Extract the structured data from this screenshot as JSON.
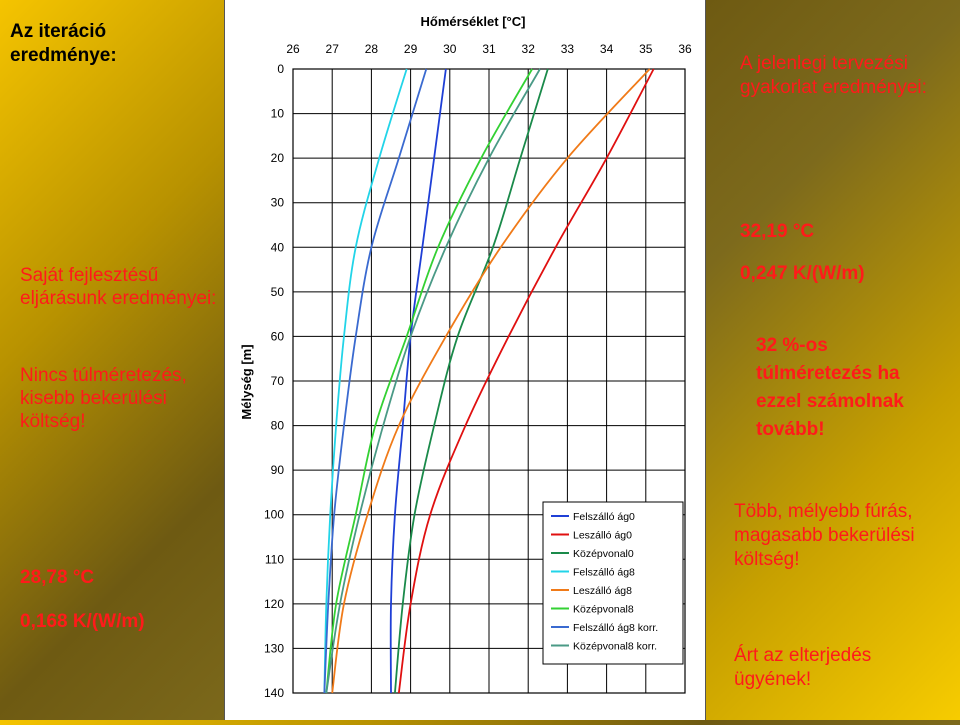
{
  "left_panel": {
    "heading": "Az iteráció eredménye:",
    "own_method_label": "Saját fejlesztésű eljárásunk eredményei:",
    "own_method_note": "Nincs túlméretezés, kisebb bekerülési költség!",
    "own_temp": "28,78 °C",
    "own_resistance": "0,168 K/(W/m)"
  },
  "right_panel": {
    "current_practice_label": "A jelenlegi tervezési gyakorlat eredményei:",
    "current_temp": "32,19 °C",
    "current_resistance": "0,247 K/(W/m)",
    "oversize_note": "32 %-os túlméretezés ha ezzel számolnak tovább!",
    "cost_note": "Több, mélyebb fúrás, magasabb bekerülési költség!",
    "harm_note": "Árt az elterjedés ügyének!"
  },
  "chart_data": {
    "type": "line",
    "title": "Hőmérséklet [°C]",
    "xlabel": "Hőmérséklet [°C]",
    "ylabel": "Mélység [m]",
    "xlim": [
      26,
      36
    ],
    "ylim": [
      0,
      140
    ],
    "y_inverted": true,
    "x_axis_position": "top",
    "x_ticks": [
      26,
      27,
      28,
      29,
      30,
      31,
      32,
      33,
      34,
      35,
      36
    ],
    "y_ticks": [
      0,
      10,
      20,
      30,
      40,
      50,
      60,
      70,
      80,
      90,
      100,
      110,
      120,
      130,
      140
    ],
    "grid": true,
    "legend_position": "bottom-right",
    "series": [
      {
        "name": "Felszálló ág0",
        "color": "#1f3fd6",
        "points": [
          [
            29.9,
            0
          ],
          [
            29.6,
            20
          ],
          [
            29.3,
            40
          ],
          [
            29.0,
            60
          ],
          [
            28.8,
            80
          ],
          [
            28.6,
            100
          ],
          [
            28.5,
            120
          ],
          [
            28.5,
            140
          ]
        ]
      },
      {
        "name": "Leszálló ág0",
        "color": "#e01010",
        "points": [
          [
            35.2,
            0
          ],
          [
            34.0,
            20
          ],
          [
            32.7,
            40
          ],
          [
            31.5,
            60
          ],
          [
            30.4,
            80
          ],
          [
            29.5,
            100
          ],
          [
            29.0,
            120
          ],
          [
            28.7,
            140
          ]
        ]
      },
      {
        "name": "Középvonal0",
        "color": "#1a8a4a",
        "points": [
          [
            32.5,
            0
          ],
          [
            31.8,
            20
          ],
          [
            31.1,
            40
          ],
          [
            30.2,
            60
          ],
          [
            29.6,
            80
          ],
          [
            29.1,
            100
          ],
          [
            28.8,
            120
          ],
          [
            28.6,
            140
          ]
        ]
      },
      {
        "name": "Felszálló ág8",
        "color": "#22d4e8",
        "points": [
          [
            28.9,
            0
          ],
          [
            28.2,
            20
          ],
          [
            27.6,
            40
          ],
          [
            27.3,
            60
          ],
          [
            27.1,
            80
          ],
          [
            26.95,
            100
          ],
          [
            26.85,
            120
          ],
          [
            26.8,
            140
          ]
        ]
      },
      {
        "name": "Leszálló ág8",
        "color": "#f07a18",
        "points": [
          [
            35.1,
            0
          ],
          [
            33.0,
            20
          ],
          [
            31.3,
            40
          ],
          [
            29.9,
            60
          ],
          [
            28.7,
            80
          ],
          [
            27.9,
            100
          ],
          [
            27.3,
            120
          ],
          [
            27.0,
            140
          ]
        ]
      },
      {
        "name": "Középvonal8",
        "color": "#33d133",
        "points": [
          [
            32.1,
            0
          ],
          [
            30.8,
            20
          ],
          [
            29.7,
            40
          ],
          [
            28.9,
            60
          ],
          [
            28.1,
            80
          ],
          [
            27.6,
            100
          ],
          [
            27.1,
            120
          ],
          [
            26.85,
            140
          ]
        ]
      },
      {
        "name": "Felszálló ág8 korr.",
        "color": "#3a6ad0",
        "points": [
          [
            29.4,
            0
          ],
          [
            28.7,
            20
          ],
          [
            28.0,
            40
          ],
          [
            27.6,
            60
          ],
          [
            27.3,
            80
          ],
          [
            27.05,
            100
          ],
          [
            26.9,
            120
          ],
          [
            26.8,
            140
          ]
        ]
      },
      {
        "name": "Középvonal8 korr.",
        "color": "#4a9a86",
        "points": [
          [
            32.3,
            0
          ],
          [
            31.0,
            20
          ],
          [
            29.9,
            40
          ],
          [
            29.0,
            60
          ],
          [
            28.3,
            80
          ],
          [
            27.7,
            100
          ],
          [
            27.2,
            120
          ],
          [
            26.85,
            140
          ]
        ]
      }
    ]
  }
}
